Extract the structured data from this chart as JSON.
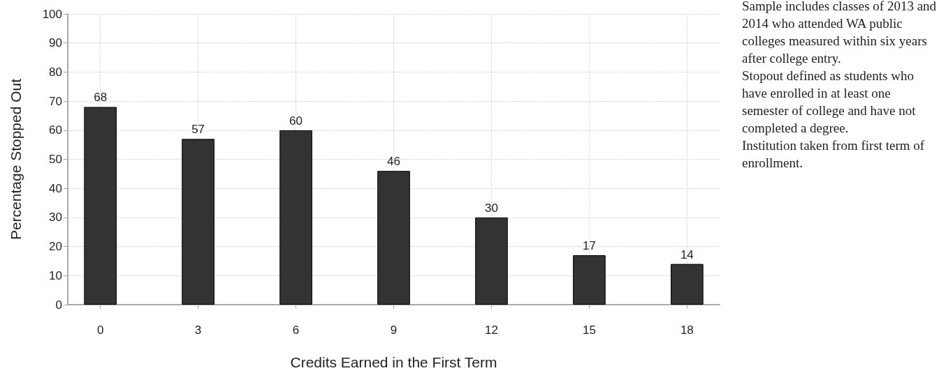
{
  "chart_data": {
    "type": "bar",
    "xlabel": "Credits Earned in the First Term",
    "ylabel": "Percentage Stopped Out",
    "x": [
      0,
      3,
      6,
      9,
      12,
      15,
      18
    ],
    "values": [
      68,
      57,
      60,
      46,
      30,
      17,
      14
    ],
    "color": "#333333",
    "xlim": [
      -1,
      19
    ],
    "xticks": [
      0,
      3,
      6,
      9,
      12,
      15,
      18
    ],
    "ylim": [
      0,
      100
    ],
    "yticks": [
      0,
      10,
      20,
      30,
      40,
      50,
      60,
      70,
      80,
      90,
      100
    ],
    "grid": true,
    "data_labels": true,
    "annotations": [
      "Sample includes classes of 2013 and 2014 who attended WA public colleges measured within six years after college entry.",
      "Stopout defined as students who have enrolled in at least one semester of college and have not completed a degree.",
      "Institution taken from first term of enrollment."
    ]
  }
}
